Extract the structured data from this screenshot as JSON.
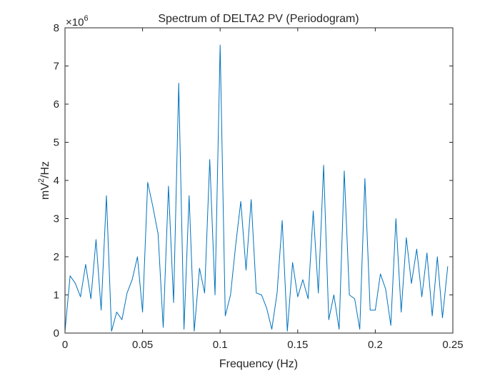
{
  "chart_data": {
    "type": "line",
    "title": "Spectrum of DELTA2 PV (Periodogram)",
    "xlabel": "Frequency (Hz)",
    "ylabel": {
      "base": "mV",
      "superscript": "2",
      "suffix": "/Hz"
    },
    "y_exponent": {
      "prefix": "×10",
      "superscript": "6"
    },
    "xlim": [
      0,
      0.25
    ],
    "ylim": [
      0,
      8
    ],
    "xticks": [
      0,
      0.05,
      0.1,
      0.15,
      0.2,
      0.25
    ],
    "xtick_labels": [
      "0",
      "0.05",
      "0.1",
      "0.15",
      "0.2",
      "0.25"
    ],
    "yticks": [
      0,
      1,
      2,
      3,
      4,
      5,
      6,
      7,
      8
    ],
    "ytick_labels": [
      "0",
      "1",
      "2",
      "3",
      "4",
      "5",
      "6",
      "7",
      "8"
    ],
    "line_color": "#0072bd",
    "series": [
      {
        "name": "Periodogram",
        "x": [
          0.0,
          0.0033,
          0.0067,
          0.01,
          0.0133,
          0.0167,
          0.02,
          0.0233,
          0.0267,
          0.03,
          0.0333,
          0.0367,
          0.04,
          0.0433,
          0.0467,
          0.05,
          0.0533,
          0.0567,
          0.06,
          0.0633,
          0.0667,
          0.07,
          0.0733,
          0.0767,
          0.08,
          0.0833,
          0.0867,
          0.09,
          0.0933,
          0.0967,
          0.1,
          0.1033,
          0.1067,
          0.11,
          0.1133,
          0.1167,
          0.12,
          0.1233,
          0.1267,
          0.13,
          0.1333,
          0.1367,
          0.14,
          0.1433,
          0.1467,
          0.15,
          0.1533,
          0.1567,
          0.16,
          0.1633,
          0.1667,
          0.17,
          0.1733,
          0.1767,
          0.18,
          0.1833,
          0.1867,
          0.19,
          0.1933,
          0.1967,
          0.2,
          0.2033,
          0.2067,
          0.21,
          0.2133,
          0.2167,
          0.22,
          0.2233,
          0.2267,
          0.23,
          0.2333,
          0.2367,
          0.24,
          0.2433,
          0.2467
        ],
        "y": [
          0.05,
          1.5,
          1.3,
          0.95,
          1.8,
          0.9,
          2.45,
          0.6,
          3.6,
          0.05,
          0.55,
          0.35,
          1.05,
          1.4,
          2.0,
          0.55,
          3.95,
          3.3,
          2.6,
          0.15,
          3.85,
          0.8,
          6.55,
          0.1,
          3.6,
          0.05,
          1.7,
          1.05,
          4.55,
          1.0,
          7.55,
          0.45,
          1.0,
          2.3,
          3.45,
          1.65,
          3.5,
          1.05,
          1.0,
          0.65,
          0.1,
          1.05,
          2.95,
          0.05,
          1.85,
          0.95,
          1.4,
          0.9,
          3.2,
          1.05,
          4.4,
          0.35,
          1.0,
          0.1,
          4.25,
          1.0,
          0.9,
          0.1,
          4.05,
          0.6,
          0.6,
          1.55,
          1.15,
          0.2,
          3.0,
          0.55,
          2.5,
          1.3,
          2.2,
          0.95,
          2.1,
          0.45,
          2.0,
          0.4,
          1.75
        ]
      }
    ]
  }
}
